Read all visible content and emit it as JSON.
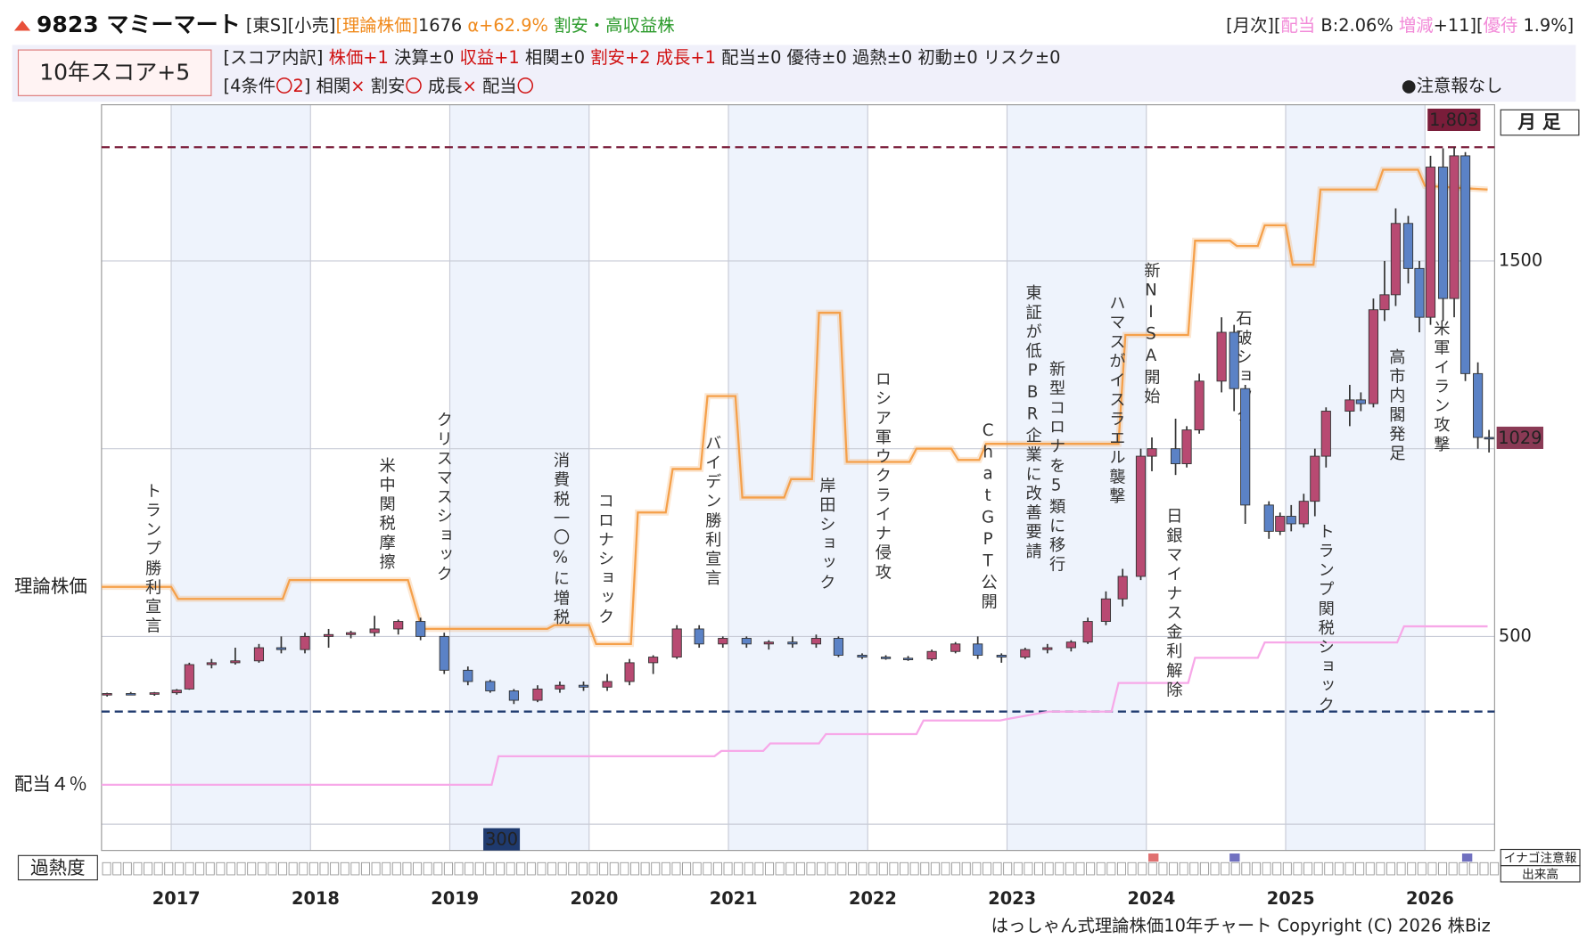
{
  "header": {
    "segments": [
      {
        "text": "9823 マミーマート",
        "color": "#111"
      },
      {
        "text": " [東S][小売]",
        "color": "#222"
      },
      {
        "text": "[理論株価]",
        "color": "#f08a1c"
      },
      {
        "text": "1676 ",
        "color": "#222"
      },
      {
        "text": "α+62.9% ",
        "color": "#f08a1c"
      },
      {
        "text": "割安・高収益株",
        "color": "#2a9a2a"
      }
    ],
    "right": [
      {
        "text": "[月次][",
        "color": "#222"
      },
      {
        "text": "配当",
        "color": "#f28ad8"
      },
      {
        "text": " B:2.06% ",
        "color": "#222"
      },
      {
        "text": "増減",
        "color": "#f28ad8"
      },
      {
        "text": "+11][",
        "color": "#222"
      },
      {
        "text": "優待",
        "color": "#f28ad8"
      },
      {
        "text": " 1.9%]",
        "color": "#222"
      }
    ]
  },
  "score": {
    "box": "10年スコア+5",
    "breakdown": [
      {
        "text": "[スコア内訳] ",
        "color": "#222"
      },
      {
        "text": "株価+1 ",
        "color": "#d01010"
      },
      {
        "text": "決算±0 ",
        "color": "#222"
      },
      {
        "text": "収益+1 ",
        "color": "#d01010"
      },
      {
        "text": "相関±0 ",
        "color": "#222"
      },
      {
        "text": "割安+2 ",
        "color": "#d01010"
      },
      {
        "text": "成長+1 ",
        "color": "#d01010"
      },
      {
        "text": "配当±0 ",
        "color": "#222"
      },
      {
        "text": "優待±0 ",
        "color": "#222"
      },
      {
        "text": "過熱±0 ",
        "color": "#222"
      },
      {
        "text": "初動±0 ",
        "color": "#222"
      },
      {
        "text": "リスク±0",
        "color": "#222"
      }
    ],
    "conditions": [
      {
        "text": "[4条件",
        "color": "#222"
      },
      {
        "text": "〇2",
        "color": "#d01010"
      },
      {
        "text": "] 相関",
        "color": "#222"
      },
      {
        "text": "× ",
        "color": "#d01010"
      },
      {
        "text": "割安",
        "color": "#222"
      },
      {
        "text": "〇 ",
        "color": "#d01010"
      },
      {
        "text": "成長",
        "color": "#222"
      },
      {
        "text": "× ",
        "color": "#d01010"
      },
      {
        "text": "配当",
        "color": "#222"
      },
      {
        "text": "〇",
        "color": "#d01010"
      }
    ],
    "alert": "●注意報なし"
  },
  "chart_data": {
    "type": "candlestick",
    "period": "月 足",
    "xlim": [
      2016.5,
      2026.5
    ],
    "xticks": [
      2017,
      2018,
      2019,
      2020,
      2021,
      2022,
      2023,
      2024,
      2025,
      2026
    ],
    "ylim": [
      -70,
      1916
    ],
    "yticks": [
      500,
      1500
    ],
    "grid_lines": [
      0,
      1000
    ],
    "up_color": "#b84a72",
    "down_color": "#5b82c6",
    "candles": [
      [
        2016.54,
        345,
        350,
        340,
        348
      ],
      [
        2016.71,
        348,
        352,
        344,
        346
      ],
      [
        2016.88,
        346,
        352,
        342,
        350
      ],
      [
        2017.04,
        350,
        360,
        345,
        357
      ],
      [
        2017.13,
        360,
        430,
        358,
        425
      ],
      [
        2017.29,
        425,
        440,
        415,
        430
      ],
      [
        2017.46,
        430,
        470,
        425,
        435
      ],
      [
        2017.63,
        435,
        480,
        430,
        470
      ],
      [
        2017.79,
        470,
        500,
        455,
        465
      ],
      [
        2017.96,
        465,
        510,
        455,
        500
      ],
      [
        2018.13,
        500,
        520,
        470,
        505
      ],
      [
        2018.29,
        505,
        515,
        495,
        510
      ],
      [
        2018.46,
        510,
        555,
        500,
        520
      ],
      [
        2018.63,
        520,
        545,
        505,
        540
      ],
      [
        2018.79,
        540,
        550,
        490,
        500
      ],
      [
        2018.96,
        500,
        510,
        400,
        410
      ],
      [
        2019.13,
        410,
        420,
        370,
        380
      ],
      [
        2019.29,
        380,
        385,
        350,
        355
      ],
      [
        2019.46,
        355,
        360,
        320,
        330
      ],
      [
        2019.63,
        330,
        370,
        325,
        360
      ],
      [
        2019.79,
        360,
        380,
        350,
        370
      ],
      [
        2019.96,
        370,
        380,
        355,
        365
      ],
      [
        2020.13,
        365,
        400,
        355,
        380
      ],
      [
        2020.29,
        380,
        440,
        370,
        430
      ],
      [
        2020.46,
        430,
        450,
        400,
        445
      ],
      [
        2020.63,
        445,
        530,
        440,
        520
      ],
      [
        2020.79,
        520,
        530,
        470,
        480
      ],
      [
        2020.96,
        480,
        500,
        470,
        495
      ],
      [
        2021.13,
        495,
        500,
        470,
        480
      ],
      [
        2021.29,
        480,
        490,
        465,
        485
      ],
      [
        2021.46,
        485,
        500,
        470,
        480
      ],
      [
        2021.63,
        480,
        505,
        470,
        495
      ],
      [
        2021.79,
        495,
        500,
        445,
        450
      ],
      [
        2021.96,
        450,
        455,
        440,
        445
      ],
      [
        2022.13,
        445,
        450,
        438,
        442
      ],
      [
        2022.29,
        442,
        448,
        435,
        440
      ],
      [
        2022.46,
        440,
        465,
        435,
        460
      ],
      [
        2022.63,
        460,
        485,
        455,
        480
      ],
      [
        2022.79,
        480,
        500,
        440,
        450
      ],
      [
        2022.96,
        450,
        455,
        430,
        445
      ],
      [
        2023.13,
        445,
        470,
        440,
        465
      ],
      [
        2023.29,
        465,
        480,
        455,
        470
      ],
      [
        2023.46,
        470,
        490,
        460,
        485
      ],
      [
        2023.58,
        485,
        550,
        480,
        540
      ],
      [
        2023.71,
        540,
        620,
        530,
        600
      ],
      [
        2023.83,
        600,
        680,
        580,
        660
      ],
      [
        2023.96,
        660,
        1000,
        650,
        980
      ],
      [
        2024.04,
        980,
        1030,
        940,
        1000
      ],
      [
        2024.21,
        1000,
        1080,
        930,
        960
      ],
      [
        2024.29,
        960,
        1060,
        950,
        1050
      ],
      [
        2024.38,
        1050,
        1200,
        1040,
        1180
      ],
      [
        2024.54,
        1180,
        1350,
        1150,
        1310
      ],
      [
        2024.63,
        1310,
        1330,
        1100,
        1160
      ],
      [
        2024.71,
        1160,
        1170,
        800,
        850
      ],
      [
        2024.88,
        850,
        860,
        760,
        780
      ],
      [
        2024.96,
        780,
        830,
        770,
        820
      ],
      [
        2025.04,
        820,
        850,
        780,
        800
      ],
      [
        2025.13,
        800,
        880,
        790,
        860
      ],
      [
        2025.21,
        860,
        1000,
        820,
        980
      ],
      [
        2025.29,
        980,
        1110,
        950,
        1100
      ],
      [
        2025.46,
        1100,
        1170,
        1060,
        1130
      ],
      [
        2025.54,
        1130,
        1150,
        1100,
        1120
      ],
      [
        2025.63,
        1120,
        1400,
        1110,
        1370
      ],
      [
        2025.71,
        1370,
        1500,
        1340,
        1410
      ],
      [
        2025.79,
        1410,
        1640,
        1380,
        1600
      ],
      [
        2025.88,
        1600,
        1620,
        1440,
        1480
      ],
      [
        2025.96,
        1480,
        1500,
        1310,
        1350
      ],
      [
        2026.04,
        1350,
        1780,
        1330,
        1750
      ],
      [
        2026.13,
        1750,
        1800,
        1340,
        1400
      ],
      [
        2026.21,
        1400,
        1803,
        1350,
        1780
      ],
      [
        2026.29,
        1780,
        1790,
        1180,
        1200
      ],
      [
        2026.38,
        1200,
        1230,
        1000,
        1030
      ],
      [
        2026.46,
        1030,
        1050,
        990,
        1029
      ]
    ],
    "high": {
      "value": 1803,
      "label": "1,803"
    },
    "low": 300,
    "last": 1029,
    "theory": {
      "name": "理論株価",
      "color": "#f5a04a",
      "x": [
        2016.5,
        2017.0,
        2017.05,
        2017.8,
        2017.85,
        2018.7,
        2018.8,
        2019.7,
        2019.75,
        2020.0,
        2020.05,
        2020.3,
        2020.35,
        2020.55,
        2020.6,
        2020.8,
        2020.85,
        2021.05,
        2021.1,
        2021.4,
        2021.45,
        2021.6,
        2021.65,
        2021.8,
        2021.85,
        2022.3,
        2022.35,
        2022.6,
        2022.65,
        2022.8,
        2022.85,
        2023.8,
        2023.85,
        2024.3,
        2024.35,
        2024.6,
        2024.65,
        2024.8,
        2024.85,
        2025.0,
        2025.05,
        2025.2,
        2025.25,
        2025.65,
        2025.7,
        2025.95,
        2026.0,
        2026.45
      ],
      "values": [
        632,
        632,
        600,
        600,
        650,
        650,
        520,
        520,
        530,
        530,
        480,
        480,
        830,
        830,
        946,
        946,
        1140,
        1140,
        870,
        870,
        919,
        919,
        1362,
        1362,
        965,
        965,
        1000,
        1000,
        970,
        970,
        1013,
        1013,
        1303,
        1303,
        1554,
        1554,
        1540,
        1540,
        1595,
        1595,
        1490,
        1490,
        1690,
        1690,
        1743,
        1743,
        1700,
        1690
      ]
    },
    "dividend": {
      "name": "配当４％",
      "color": "#f7a8e8",
      "x": [
        2016.5,
        2019.3,
        2019.35,
        2020.9,
        2020.95,
        2021.25,
        2021.3,
        2021.65,
        2021.7,
        2022.35,
        2022.4,
        2022.95,
        2023.0,
        2023.3,
        2023.75,
        2023.8,
        2024.3,
        2024.35,
        2024.8,
        2024.85,
        2025.8,
        2025.85,
        2026.45
      ],
      "values": [
        105,
        105,
        181,
        181,
        195,
        195,
        215,
        215,
        240,
        240,
        276,
        276,
        280,
        300,
        300,
        376,
        376,
        443,
        443,
        484,
        484,
        527,
        527
      ]
    },
    "events": [
      {
        "x": 2016.86,
        "label": "トランプ勝利宣言"
      },
      {
        "x": 2018.54,
        "label": "米中関税摩擦"
      },
      {
        "x": 2018.95,
        "label": "クリスマスショック"
      },
      {
        "x": 2019.79,
        "label": "消費税一〇%に増税"
      },
      {
        "x": 2020.11,
        "label": "コロナショック"
      },
      {
        "x": 2020.88,
        "label": "バイデン勝利宣言"
      },
      {
        "x": 2021.7,
        "label": "岸田ショック"
      },
      {
        "x": 2022.1,
        "label": "ロシア軍ウクライナ侵攻"
      },
      {
        "x": 2022.86,
        "label": "ChatGPT公開"
      },
      {
        "x": 2023.18,
        "label": "東証が低PBR企業に改善要請"
      },
      {
        "x": 2023.35,
        "label": "新型コロナを5類に移行"
      },
      {
        "x": 2023.78,
        "label": "ハマスがイスラエル襲撃"
      },
      {
        "x": 2024.03,
        "label": "新NISA開始"
      },
      {
        "x": 2024.19,
        "label": "日銀マイナス金利解除"
      },
      {
        "x": 2024.69,
        "label": "石破ショック"
      },
      {
        "x": 2025.28,
        "label": "トランプ関税ショック"
      },
      {
        "x": 2025.79,
        "label": "高市内閣発足"
      },
      {
        "x": 2026.11,
        "label": "米軍イラン攻撃"
      }
    ],
    "overheat_label": "過熱度",
    "inago_label": "イナゴ注意報",
    "volume_label": "出来高",
    "footer": "はっしゃん式理論株価10年チャート Copyright (C) 2026 株Biz"
  }
}
